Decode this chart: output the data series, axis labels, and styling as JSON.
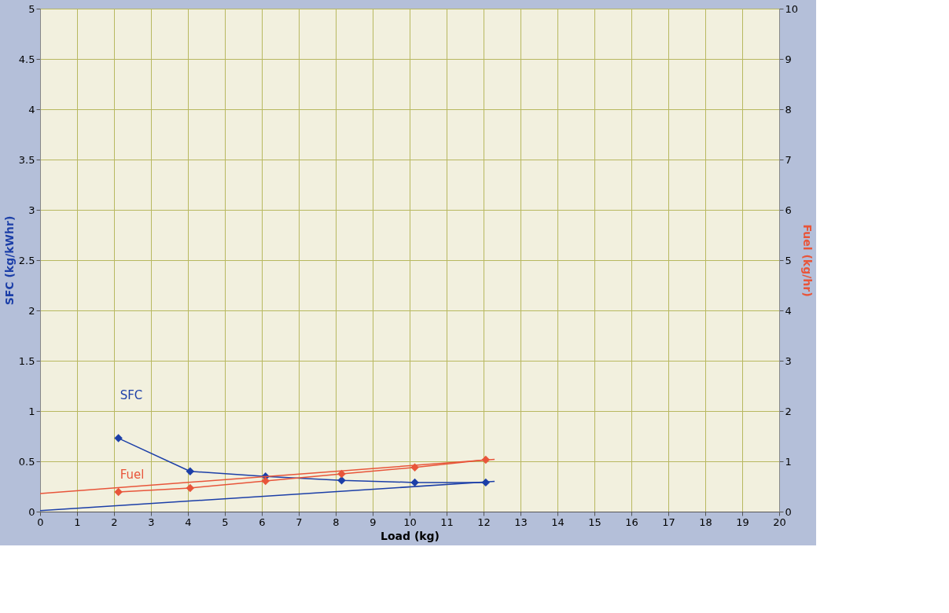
{
  "chart_data": {
    "type": "line",
    "xlabel": "Load (kg)",
    "ylabel": "SFC (kg/kWhr)",
    "y2label": "Fuel (kg/hr)",
    "xlim": [
      0,
      20
    ],
    "xticks": [
      0,
      1,
      2,
      3,
      4,
      5,
      6,
      7,
      8,
      9,
      10,
      11,
      12,
      13,
      14,
      15,
      16,
      17,
      18,
      19,
      20
    ],
    "ylim": [
      0,
      5
    ],
    "yticks": [
      0,
      0.5,
      1,
      1.5,
      2,
      2.5,
      3,
      3.5,
      4,
      4.5,
      5
    ],
    "y2lim": [
      0,
      10
    ],
    "y2ticks": [
      0,
      1,
      2,
      3,
      4,
      5,
      6,
      7,
      8,
      9,
      10
    ],
    "grid": true,
    "marker": "diamond",
    "line_style": "solid",
    "series": [
      {
        "name": "SFC",
        "color": "#1c3fa8",
        "x": [
          2.12,
          4.06,
          6.1,
          8.16,
          10.14,
          12.06
        ],
        "values": [
          0.73,
          0.4,
          0.35,
          0.31,
          0.29,
          0.29
        ]
      },
      {
        "name": "Fuel",
        "color": "#e8553a",
        "axis": "y2",
        "x": [
          2.12,
          4.06,
          6.1,
          8.16,
          10.14,
          12.06
        ],
        "values": [
          0.39,
          0.47,
          0.61,
          0.75,
          0.88,
          1.03
        ]
      },
      {
        "type": "line",
        "color": "#1c3fa8",
        "marker": "none",
        "x": [
          0,
          12.3
        ],
        "values": [
          0.01,
          0.3
        ]
      },
      {
        "type": "line",
        "color": "#e8553a",
        "marker": "none",
        "axis": "y2",
        "x": [
          0,
          12.3
        ],
        "values": [
          0.36,
          1.04
        ]
      }
    ]
  }
}
